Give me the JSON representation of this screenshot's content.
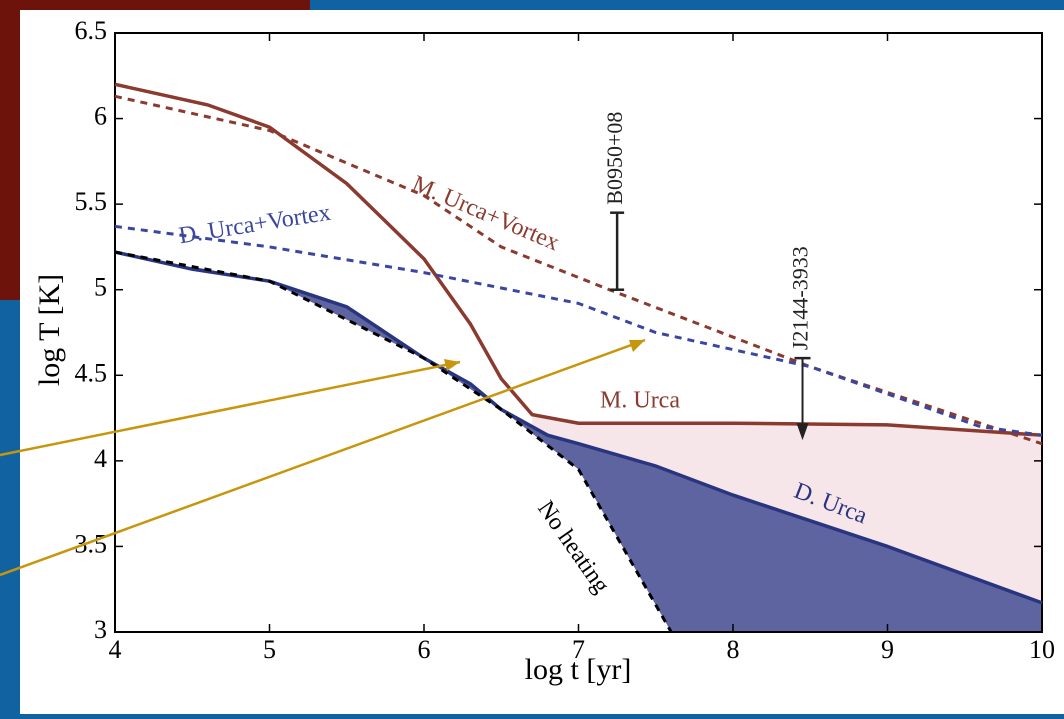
{
  "chart_data": {
    "type": "line",
    "xlabel": "log t [yr]",
    "ylabel": "log T   [K]",
    "xlim": [
      4,
      10
    ],
    "ylim": [
      3,
      6.5
    ],
    "xticks": [
      4,
      5,
      6,
      7,
      8,
      9,
      10
    ],
    "yticks": [
      3,
      3.5,
      4,
      4.5,
      5,
      5.5,
      6,
      6.5
    ],
    "series": [
      {
        "name": "M. Urca",
        "color": "#8b3a2f",
        "dash": false,
        "fill": "#f6e6ea",
        "x": [
          4,
          4.6,
          5,
          5.5,
          6,
          6.3,
          6.5,
          6.7,
          7,
          8,
          9,
          10
        ],
        "values": [
          6.2,
          6.08,
          5.95,
          5.62,
          5.18,
          4.8,
          4.48,
          4.27,
          4.22,
          4.22,
          4.21,
          4.15
        ]
      },
      {
        "name": "D. Urca",
        "color": "#2a3580",
        "dash": false,
        "fill": "#5e64a0",
        "x": [
          4,
          4.5,
          5,
          5.5,
          6,
          6.3,
          6.5,
          6.8,
          7,
          7.5,
          8,
          9,
          10
        ],
        "values": [
          5.22,
          5.12,
          5.05,
          4.9,
          4.6,
          4.45,
          4.3,
          4.15,
          4.1,
          3.97,
          3.8,
          3.5,
          3.17
        ]
      },
      {
        "name": "No heating",
        "color": "#000000",
        "dash": true,
        "x": [
          4,
          5,
          6,
          6.5,
          7,
          7.6
        ],
        "values": [
          5.22,
          5.05,
          4.6,
          4.3,
          3.95,
          3.0
        ]
      },
      {
        "name": "M. Urca+Vortex",
        "color": "#8b3a2f",
        "dash": true,
        "x": [
          4,
          5,
          6,
          6.5,
          7.2,
          8.5,
          10
        ],
        "values": [
          6.13,
          5.93,
          5.55,
          5.25,
          5.0,
          4.55,
          4.1
        ]
      },
      {
        "name": "D. Urca+Vortex",
        "color": "#3a46a0",
        "dash": true,
        "x": [
          4,
          5,
          6,
          7,
          7.5,
          8.5,
          9.6,
          10
        ],
        "values": [
          5.37,
          5.25,
          5.1,
          4.92,
          4.75,
          4.55,
          4.2,
          4.15
        ]
      }
    ],
    "observations": [
      {
        "label": "B0950+08",
        "x": 7.25,
        "range": [
          5.0,
          5.45
        ]
      },
      {
        "label": "J2144-3933",
        "x": 8.45,
        "upper_limit": 4.6
      }
    ]
  }
}
